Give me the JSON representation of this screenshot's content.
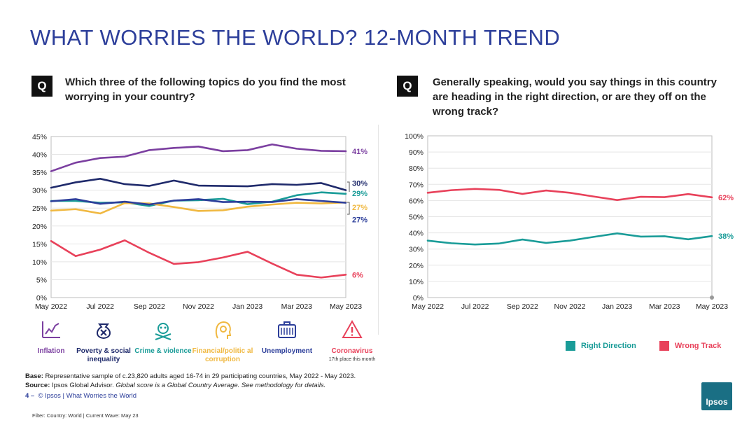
{
  "title": "WHAT WORRIES THE WORLD? 12-MONTH TREND",
  "q_label": "Q",
  "question_left": "Which three of the following topics do you find the most worrying in your country?",
  "question_right": "Generally speaking, would you say things in this country are heading in the right direction, or are they off on the wrong track?",
  "legend_left": [
    {
      "label": "Inflation",
      "color": "#7b3fa0",
      "icon": "inflation-chart-icon"
    },
    {
      "label": "Poverty & social inequality",
      "color": "#1f2a6b",
      "icon": "money-bag-icon"
    },
    {
      "label": "Crime & violence",
      "color": "#1a9c98",
      "icon": "skull-crossbones-icon"
    },
    {
      "label": "Financial/politic al corruption",
      "color": "#f0b840",
      "icon": "coin-head-icon"
    },
    {
      "label": "Unemployment",
      "color": "#2c3e9a",
      "icon": "briefcase-icon"
    },
    {
      "label": "Coronavirus",
      "color": "#e8415a",
      "icon": "warning-icon",
      "sub": "17th place this month"
    }
  ],
  "legend_right": [
    {
      "label": "Right Direction",
      "color": "#1a9c98"
    },
    {
      "label": "Wrong Track",
      "color": "#e8415a"
    }
  ],
  "footer": {
    "base_label": "Base:",
    "base_text": " Representative sample of c.23,820 adults aged 16-74 in 29 participating countries, May 2022 - May 2023.",
    "source_label": "Source:",
    "source_text": " Ipsos Global Advisor. ",
    "source_italic": "Global score is a Global Country Average. See methodology for details.",
    "page_num": "4 –",
    "copyright": "© Ipsos | What Worries the World",
    "filter": "Filter: Country: World | Current Wave: May 23"
  },
  "logo_text": "Ipsos",
  "chart_data": [
    {
      "type": "line",
      "title": "Which three of the following topics do you find the most worrying in your country?",
      "x": [
        "May 2022",
        "Jun 2022",
        "Jul 2022",
        "Aug 2022",
        "Sep 2022",
        "Oct 2022",
        "Nov 2022",
        "Dec 2022",
        "Jan 2023",
        "Feb 2023",
        "Mar 2023",
        "Apr 2023",
        "May 2023"
      ],
      "tick_labels": [
        "May 2022",
        "Jul 2022",
        "Sep 2022",
        "Nov 2022",
        "Jan 2023",
        "Mar 2023",
        "May 2023"
      ],
      "y_ticks": [
        "0%",
        "5%",
        "10%",
        "15%",
        "20%",
        "25%",
        "30%",
        "35%",
        "40%",
        "45%"
      ],
      "ylim": [
        0,
        45
      ],
      "series": [
        {
          "name": "Inflation",
          "color": "#7b3fa0",
          "end_label": "41%",
          "values": [
            35.3,
            37.7,
            39,
            39.4,
            41.2,
            41.8,
            42.2,
            40.9,
            41.2,
            42.8,
            41.6,
            41,
            40.9
          ]
        },
        {
          "name": "Poverty & social inequality",
          "color": "#1f2a6b",
          "end_label": "30%",
          "values": [
            30.7,
            32.2,
            33.2,
            31.7,
            31.2,
            32.7,
            31.3,
            31.2,
            31.1,
            31.7,
            31.5,
            32,
            30
          ]
        },
        {
          "name": "Crime & violence",
          "color": "#1a9c98",
          "end_label": "29%",
          "values": [
            27,
            27,
            26.5,
            26.6,
            25.6,
            27.1,
            27.2,
            27.6,
            26.1,
            26.8,
            28.6,
            29.4,
            29
          ]
        },
        {
          "name": "Financial/political corruption",
          "color": "#f0b840",
          "end_label": "27%",
          "values": [
            24.3,
            24.7,
            23.5,
            26.4,
            26.3,
            25.3,
            24.2,
            24.4,
            25.4,
            26,
            26.5,
            26.3,
            26.6
          ]
        },
        {
          "name": "Unemployment",
          "color": "#2c3e9a",
          "end_label": "27%",
          "values": [
            26.9,
            27.5,
            26.2,
            26.8,
            26,
            27.1,
            27.5,
            26.7,
            26.8,
            26.7,
            27.5,
            27,
            26.5
          ]
        },
        {
          "name": "Coronavirus",
          "color": "#e8415a",
          "end_label": "6%",
          "values": [
            15.8,
            11.6,
            13.4,
            16,
            12.5,
            9.4,
            9.9,
            11.2,
            12.8,
            9.5,
            6.4,
            5.6,
            6.4
          ]
        }
      ]
    },
    {
      "type": "line",
      "title": "Generally speaking, would you say things in this country are heading in the right direction, or are they off on the wrong track?",
      "x": [
        "May 2022",
        "Jun 2022",
        "Jul 2022",
        "Aug 2022",
        "Sep 2022",
        "Oct 2022",
        "Nov 2022",
        "Dec 2022",
        "Jan 2023",
        "Feb 2023",
        "Mar 2023",
        "Apr 2023",
        "May 2023"
      ],
      "tick_labels": [
        "May 2022",
        "Jul 2022",
        "Sep 2022",
        "Nov 2022",
        "Jan 2023",
        "Mar 2023",
        "May 2023"
      ],
      "y_ticks": [
        "0%",
        "10%",
        "20%",
        "30%",
        "40%",
        "50%",
        "60%",
        "70%",
        "80%",
        "90%",
        "100%"
      ],
      "ylim": [
        0,
        100
      ],
      "series": [
        {
          "name": "Right Direction",
          "color": "#1a9c98",
          "end_label": "38%",
          "values": [
            35.2,
            33.6,
            32.8,
            33.4,
            35.9,
            33.8,
            35.2,
            37.5,
            39.7,
            37.7,
            37.9,
            36,
            38
          ]
        },
        {
          "name": "Wrong Track",
          "color": "#e8415a",
          "end_label": "62%",
          "values": [
            64.8,
            66.4,
            67.2,
            66.6,
            64.1,
            66.2,
            64.8,
            62.5,
            60.3,
            62.3,
            62.1,
            64,
            62
          ]
        }
      ]
    }
  ]
}
